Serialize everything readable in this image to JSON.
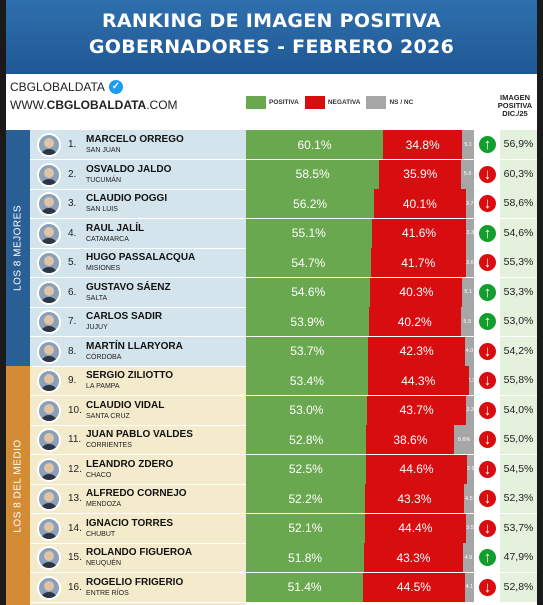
{
  "title": {
    "line1": "RANKING DE IMAGEN POSITIVA",
    "line2": "GOBERNADORES - FEBRERO 2026"
  },
  "brand": {
    "name": "CBGLOBALDATA",
    "site_prefix": "WWW.",
    "site_main": "CBGLOBALDATA",
    "site_suffix": ".COM"
  },
  "previous_header": "IMAGEN POSITIVA DIC./25",
  "sections": {
    "best": "LOS 8 MEJORES",
    "middle": "LOS 8 DEL MEDIO"
  },
  "colors": {
    "positive": "#6aa84f",
    "negative": "#d80d10",
    "ns": "#a6a6a6",
    "up": "#129e2c",
    "down": "#d80d10"
  },
  "chart_data": {
    "type": "bar",
    "stacked": true,
    "orientation": "horizontal",
    "series": [
      {
        "name": "POSITIVA",
        "color": "#6aa84f"
      },
      {
        "name": "NEGATIVA",
        "color": "#d80d10"
      },
      {
        "name": "NS / NC",
        "color": "#a6a6a6"
      }
    ],
    "rows": [
      {
        "rank": "1.",
        "name": "MARCELO ORREGO",
        "province": "SAN JUAN",
        "positive": 60.1,
        "positive_label": "60.1%",
        "negative": 34.8,
        "negative_label": "34.8%",
        "ns": 5.1,
        "ns_label": "5.1",
        "trend": "up",
        "previous": "56,9%"
      },
      {
        "rank": "2.",
        "name": "OSVALDO JALDO",
        "province": "TUCUMÁN",
        "positive": 58.5,
        "positive_label": "58.5%",
        "negative": 35.9,
        "negative_label": "35.9%",
        "ns": 5.6,
        "ns_label": "5.6",
        "trend": "down",
        "previous": "60,3%"
      },
      {
        "rank": "3.",
        "name": "CLAUDIO POGGI",
        "province": "SAN LUIS",
        "positive": 56.2,
        "positive_label": "56.2%",
        "negative": 40.1,
        "negative_label": "40.1%",
        "ns": 3.7,
        "ns_label": "3.7",
        "trend": "down",
        "previous": "58,6%"
      },
      {
        "rank": "4.",
        "name": "RAUL JALÍL",
        "province": "CATAMARCA",
        "positive": 55.1,
        "positive_label": "55.1%",
        "negative": 41.6,
        "negative_label": "41.6%",
        "ns": 3.3,
        "ns_label": "3.3",
        "trend": "up",
        "previous": "54,6%"
      },
      {
        "rank": "5.",
        "name": "HUGO PASSALACQUA",
        "province": "MISIONES",
        "positive": 54.7,
        "positive_label": "54.7%",
        "negative": 41.7,
        "negative_label": "41.7%",
        "ns": 3.6,
        "ns_label": "3.6",
        "trend": "down",
        "previous": "55,3%"
      },
      {
        "rank": "6.",
        "name": "GUSTAVO SÁENZ",
        "province": "SALTA",
        "positive": 54.6,
        "positive_label": "54.6%",
        "negative": 40.3,
        "negative_label": "40.3%",
        "ns": 5.1,
        "ns_label": "5.1",
        "trend": "up",
        "previous": "53,3%"
      },
      {
        "rank": "7.",
        "name": "CARLOS SADIR",
        "province": "JUJUY",
        "positive": 53.9,
        "positive_label": "53.9%",
        "negative": 40.2,
        "negative_label": "40.2%",
        "ns": 5.9,
        "ns_label": "5.9",
        "trend": "up",
        "previous": "53,0%"
      },
      {
        "rank": "8.",
        "name": "MARTÍN LLARYORA",
        "province": "CÓRDOBA",
        "positive": 53.7,
        "positive_label": "53.7%",
        "negative": 42.3,
        "negative_label": "42.3%",
        "ns": 4.0,
        "ns_label": "4.0",
        "trend": "down",
        "previous": "54,2%"
      },
      {
        "rank": "9.",
        "name": "SERGIO ZILIOTTO",
        "province": "LA PAMPA",
        "positive": 53.4,
        "positive_label": "53.4%",
        "negative": 44.3,
        "negative_label": "44.3%",
        "ns": 2.3,
        "ns_label": "2.3",
        "trend": "down",
        "previous": "55,8%"
      },
      {
        "rank": "10.",
        "name": "CLAUDIO VIDAL",
        "province": "SANTA CRUZ",
        "positive": 53.0,
        "positive_label": "53.0%",
        "negative": 43.7,
        "negative_label": "43.7%",
        "ns": 3.3,
        "ns_label": "3.3",
        "trend": "down",
        "previous": "54,0%"
      },
      {
        "rank": "11.",
        "name": "JUAN PABLO VALDES",
        "province": "CORRIENTES",
        "positive": 52.8,
        "positive_label": "52.8%",
        "negative": 38.6,
        "negative_label": "38.6%",
        "ns": 8.6,
        "ns_label": "8.6%",
        "trend": "down",
        "previous": "55,0%"
      },
      {
        "rank": "12.",
        "name": "LEANDRO ZDERO",
        "province": "CHACO",
        "positive": 52.5,
        "positive_label": "52.5%",
        "negative": 44.6,
        "negative_label": "44.6%",
        "ns": 2.9,
        "ns_label": "2.9",
        "trend": "down",
        "previous": "54,5%"
      },
      {
        "rank": "13.",
        "name": "ALFREDO CORNEJO",
        "province": "MENDOZA",
        "positive": 52.2,
        "positive_label": "52.2%",
        "negative": 43.3,
        "negative_label": "43.3%",
        "ns": 4.5,
        "ns_label": "4.5",
        "trend": "down",
        "previous": "52,3%"
      },
      {
        "rank": "14.",
        "name": "IGNACIO TORRES",
        "province": "CHUBUT",
        "positive": 52.1,
        "positive_label": "52.1%",
        "negative": 44.4,
        "negative_label": "44.4%",
        "ns": 3.5,
        "ns_label": "3.5",
        "trend": "down",
        "previous": "53,7%"
      },
      {
        "rank": "15.",
        "name": "ROLANDO FIGUEROA",
        "province": "NEUQUÉN",
        "positive": 51.8,
        "positive_label": "51.8%",
        "negative": 43.3,
        "negative_label": "43.3%",
        "ns": 4.9,
        "ns_label": "4.9",
        "trend": "up",
        "previous": "47,9%"
      },
      {
        "rank": "16.",
        "name": "ROGELIO FRIGERIO",
        "province": "ENTRE RÍOS",
        "positive": 51.4,
        "positive_label": "51.4%",
        "negative": 44.5,
        "negative_label": "44.5%",
        "ns": 4.1,
        "ns_label": "4.1",
        "trend": "down",
        "previous": "52,8%"
      }
    ]
  }
}
